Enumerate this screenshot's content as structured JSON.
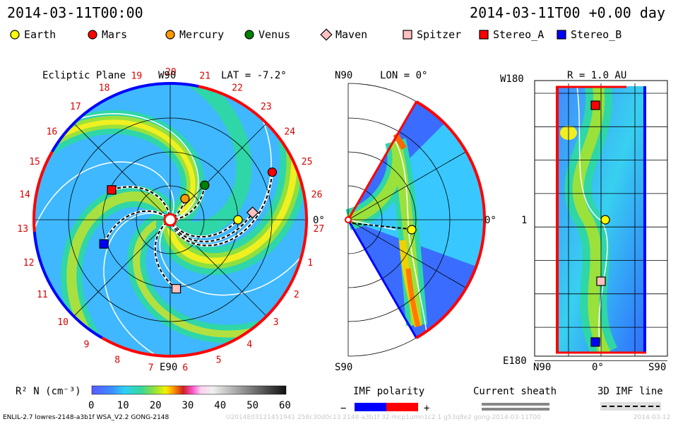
{
  "header": {
    "title_left": "2014-03-11T00:00",
    "title_right": "2014-03-11T00 +0.00 day"
  },
  "legend": [
    {
      "label": "Earth",
      "shape": "circle",
      "color": "#ffff00"
    },
    {
      "label": "Mars",
      "shape": "circle",
      "color": "#ff0000"
    },
    {
      "label": "Mercury",
      "shape": "circle",
      "color": "#ff9900"
    },
    {
      "label": "Venus",
      "shape": "circle",
      "color": "#008000"
    },
    {
      "label": "Maven",
      "shape": "diamond",
      "color": "#ffc0c0"
    },
    {
      "label": "Spitzer",
      "shape": "square",
      "color": "#ffc0c0"
    },
    {
      "label": "Stereo_A",
      "shape": "square",
      "color": "#ff0000"
    },
    {
      "label": "Stereo_B",
      "shape": "square",
      "color": "#0000ff"
    }
  ],
  "chart_data": [
    {
      "type": "polar-map",
      "panel": "ecliptic",
      "title": "Ecliptic Plane",
      "lat_label": "LAT = -7.2°",
      "top_label": "W90",
      "bottom_label": "E90",
      "right_label": "0°",
      "carrington_labels": [
        "20",
        "21",
        "22",
        "23",
        "24",
        "25",
        "26",
        "27",
        "1",
        "2",
        "3",
        "4",
        "5",
        "6",
        "7",
        "8",
        "9",
        "10",
        "11",
        "12",
        "13",
        "14",
        "15",
        "16",
        "17",
        "18",
        "19"
      ],
      "objects": [
        {
          "name": "Earth",
          "r_au": 1.0,
          "angle_deg": 0
        },
        {
          "name": "Mars",
          "r_au": 1.66,
          "angle_deg": 25
        },
        {
          "name": "Mercury",
          "r_au": 0.38,
          "angle_deg": 55
        },
        {
          "name": "Venus",
          "r_au": 0.72,
          "angle_deg": 45
        },
        {
          "name": "Maven",
          "r_au": 1.22,
          "angle_deg": 5
        },
        {
          "name": "Spitzer",
          "r_au": 1.02,
          "angle_deg": -85
        },
        {
          "name": "Stereo_A",
          "r_au": 0.97,
          "angle_deg": 153
        },
        {
          "name": "Stereo_B",
          "r_au": 1.04,
          "angle_deg": -160
        }
      ]
    },
    {
      "type": "meridional-map",
      "panel": "meridional",
      "top_label": "N90",
      "bottom_label": "S90",
      "lon_label": "LON = 0°",
      "right_label": "0°"
    },
    {
      "type": "latlon-map",
      "panel": "sphere",
      "r_label": "R = 1.0 AU",
      "y_top_label": "W180",
      "y_mid_label": "1",
      "y_bottom_label": "E180",
      "x_left_label": "N90",
      "x_mid_label": "0°",
      "x_right_label": "S90"
    }
  ],
  "colorbar": {
    "label": "R² N (cm⁻³)",
    "ticks": [
      "0",
      "10",
      "20",
      "30",
      "40",
      "50",
      "60"
    ],
    "min": 0,
    "max": 60
  },
  "bottom_legend": {
    "imf_title": "IMF polarity",
    "imf_minus": "−",
    "imf_plus": "+",
    "sheath_title": "Current sheath",
    "imf3d_title": "3D IMF line"
  },
  "footer": {
    "model": "ENLIL-2.7 lowres-2148-a3b1f WSA_V2.2 GONG-2148",
    "faint": "U2014E03121451941 258c30d0c13 2148-a3b1f 32-mcp1umn1c2 1 g53q8e2 gong-2014-03-11T00",
    "faint_right": "2014-03-12"
  }
}
